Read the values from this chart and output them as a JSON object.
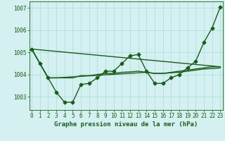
{
  "series": [
    {
      "name": "volatile_markers",
      "x": [
        0,
        1,
        2,
        3,
        4,
        5,
        6,
        7,
        8,
        9,
        10,
        11,
        12,
        13,
        14,
        15,
        16,
        17,
        18,
        19,
        20,
        21,
        22,
        23
      ],
      "y": [
        1005.15,
        1004.5,
        1003.85,
        1003.2,
        1002.75,
        1002.75,
        1003.55,
        1003.6,
        1003.85,
        1004.15,
        1004.15,
        1004.5,
        1004.85,
        1004.9,
        1004.15,
        1003.6,
        1003.6,
        1003.85,
        1004.0,
        1004.3,
        1004.6,
        1005.45,
        1006.1,
        1007.05
      ],
      "marker": "D",
      "markersize": 2.5,
      "linewidth": 1.0,
      "linestyle": "-"
    },
    {
      "name": "smooth_line1",
      "x": [
        0,
        23
      ],
      "y": [
        1005.15,
        1004.35
      ],
      "marker": null,
      "markersize": 0,
      "linewidth": 1.0,
      "linestyle": "-"
    },
    {
      "name": "smooth_line2",
      "x": [
        0,
        1,
        2,
        3,
        14,
        15,
        16,
        17,
        18,
        19,
        20,
        21,
        22,
        23
      ],
      "y": [
        1005.15,
        1004.5,
        1003.85,
        1003.85,
        1004.1,
        1004.05,
        1004.05,
        1004.1,
        1004.15,
        1004.2,
        1004.25,
        1004.3,
        1004.35,
        1004.35
      ],
      "marker": null,
      "markersize": 0,
      "linewidth": 1.0,
      "linestyle": "-"
    },
    {
      "name": "smooth_line3",
      "x": [
        0,
        1,
        2,
        3,
        4,
        5,
        6,
        7,
        8,
        9,
        10,
        11,
        12,
        13,
        14,
        15,
        16,
        17,
        18,
        19,
        20,
        21,
        22,
        23
      ],
      "y": [
        1005.15,
        1004.5,
        1003.85,
        1003.85,
        1003.85,
        1003.85,
        1003.95,
        1003.95,
        1004.0,
        1004.05,
        1004.05,
        1004.1,
        1004.12,
        1004.15,
        1004.1,
        1004.05,
        1004.05,
        1004.08,
        1004.1,
        1004.15,
        1004.2,
        1004.25,
        1004.27,
        1004.3
      ],
      "marker": null,
      "markersize": 0,
      "linewidth": 1.0,
      "linestyle": "-"
    }
  ],
  "line_color": "#1a5c1a",
  "bg_color": "#d4f0f0",
  "grid_color": "#aadddd",
  "xlabel": "Graphe pression niveau de la mer (hPa)",
  "xlabel_fontsize": 6.5,
  "xtick_labels": [
    "0",
    "1",
    "2",
    "3",
    "4",
    "5",
    "6",
    "7",
    "8",
    "9",
    "10",
    "11",
    "12",
    "13",
    "14",
    "15",
    "16",
    "17",
    "18",
    "19",
    "20",
    "21",
    "22",
    "23"
  ],
  "ytick_values": [
    1003,
    1004,
    1005,
    1006,
    1007
  ],
  "ylim": [
    1002.4,
    1007.3
  ],
  "xlim": [
    -0.3,
    23.3
  ],
  "tick_fontsize": 5.5,
  "title_color": "#1a5c1a",
  "axis_color": "#1a5c1a"
}
